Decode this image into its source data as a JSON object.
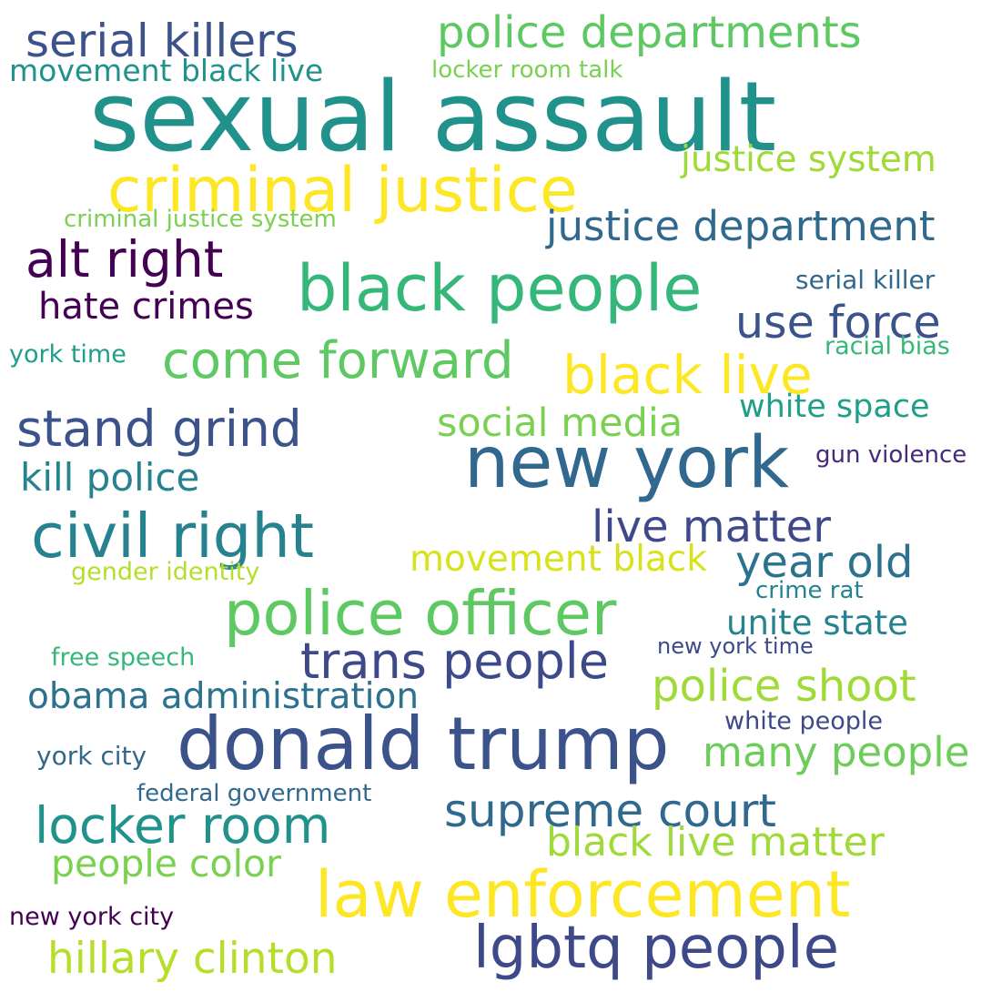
{
  "phrases": [
    {
      "text": "serial killers",
      "color": "#3b528b"
    },
    {
      "text": "police departments",
      "color": "#5ec962"
    },
    {
      "text": "movement black live",
      "color": "#21918c"
    },
    {
      "text": "locker room talk",
      "color": "#7ad151"
    },
    {
      "text": "sexual assault",
      "color": "#21918c"
    },
    {
      "text": "justice system",
      "color": "#a0da39"
    },
    {
      "text": "criminal justice",
      "color": "#fde725"
    },
    {
      "text": "criminal justice system",
      "color": "#7ad151"
    },
    {
      "text": "justice department",
      "color": "#31688e"
    },
    {
      "text": "alt right",
      "color": "#440154"
    },
    {
      "text": "black people",
      "color": "#35b779"
    },
    {
      "text": "serial killer",
      "color": "#31688e"
    },
    {
      "text": "hate crimes",
      "color": "#440154"
    },
    {
      "text": "use force",
      "color": "#3b528b"
    },
    {
      "text": "york time",
      "color": "#1f9e89"
    },
    {
      "text": "come forward",
      "color": "#5ec962"
    },
    {
      "text": "racial bias",
      "color": "#35b779"
    },
    {
      "text": "black live",
      "color": "#fde725"
    },
    {
      "text": "white space",
      "color": "#1f9e89"
    },
    {
      "text": "stand grind",
      "color": "#3b528b"
    },
    {
      "text": "social media",
      "color": "#7ad151"
    },
    {
      "text": "new york",
      "color": "#31688e"
    },
    {
      "text": "gun violence",
      "color": "#482878"
    },
    {
      "text": "kill police",
      "color": "#26828e"
    },
    {
      "text": "civil right",
      "color": "#26828e"
    },
    {
      "text": "live matter",
      "color": "#3e4989"
    },
    {
      "text": "movement black",
      "color": "#d8e219"
    },
    {
      "text": "year old",
      "color": "#2c728e"
    },
    {
      "text": "gender identity",
      "color": "#b5de2b"
    },
    {
      "text": "crime rat",
      "color": "#26828e"
    },
    {
      "text": "police officer",
      "color": "#5ec962"
    },
    {
      "text": "unite state",
      "color": "#26828e"
    },
    {
      "text": "free speech",
      "color": "#35b779"
    },
    {
      "text": "trans people",
      "color": "#3e4989"
    },
    {
      "text": "new york time",
      "color": "#3e4989"
    },
    {
      "text": "police shoot",
      "color": "#a0da39"
    },
    {
      "text": "obama administration",
      "color": "#2c728e"
    },
    {
      "text": "donald trump",
      "color": "#3b528b"
    },
    {
      "text": "white people",
      "color": "#3e4989"
    },
    {
      "text": "many people",
      "color": "#6ccd5a"
    },
    {
      "text": "york city",
      "color": "#31688e"
    },
    {
      "text": "federal government",
      "color": "#31688e"
    },
    {
      "text": "supreme court",
      "color": "#31688e"
    },
    {
      "text": "locker room",
      "color": "#21918c"
    },
    {
      "text": "black live matter",
      "color": "#a0da39"
    },
    {
      "text": "people color",
      "color": "#7ad151"
    },
    {
      "text": "law enforcement",
      "color": "#fde725"
    },
    {
      "text": "new york city",
      "color": "#440154"
    },
    {
      "text": "lgbtq people",
      "color": "#3e4989"
    },
    {
      "text": "hillary clinton",
      "color": "#b5de2b"
    }
  ]
}
